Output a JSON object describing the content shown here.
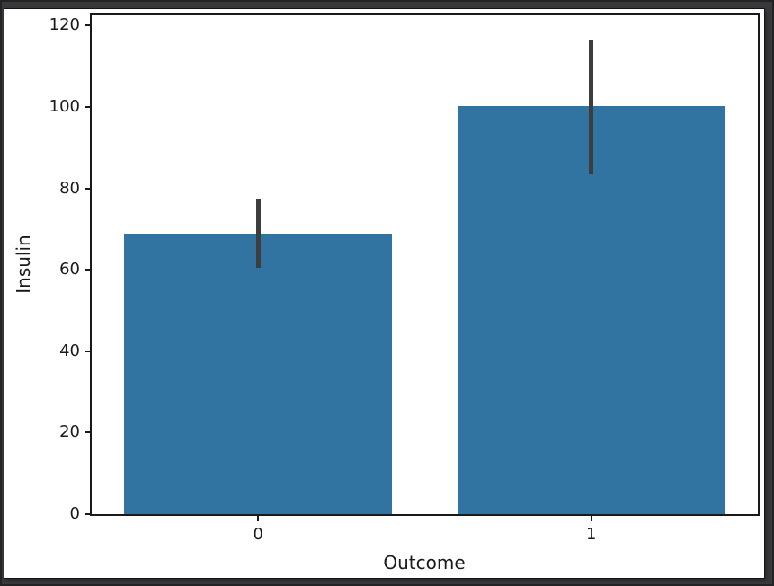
{
  "window": {
    "frame_color": "#39393b",
    "figure_background": "#ffffff"
  },
  "chart_data": {
    "type": "bar",
    "title": "",
    "xlabel": "Outcome",
    "ylabel": "Insulin",
    "categories": [
      "0",
      "1"
    ],
    "values": [
      68.8,
      100.3
    ],
    "error_bars": [
      {
        "low": 60.5,
        "high": 77.5
      },
      {
        "low": 83.5,
        "high": 116.5
      }
    ],
    "ytick_labels": [
      "0",
      "20",
      "40",
      "60",
      "80",
      "100",
      "120"
    ],
    "ytick_values": [
      0,
      20,
      40,
      60,
      80,
      100,
      120
    ],
    "ylim": [
      0,
      122.5
    ],
    "category_centers": [
      0.25,
      0.75
    ],
    "bar_width_fraction": 0.402,
    "bar_color": "#3274a1",
    "error_bar_color": "#3d3d3d",
    "axis_color": "#1a1a1a",
    "text_color": "#1a1a1a",
    "grid": false,
    "legend_position": null
  }
}
